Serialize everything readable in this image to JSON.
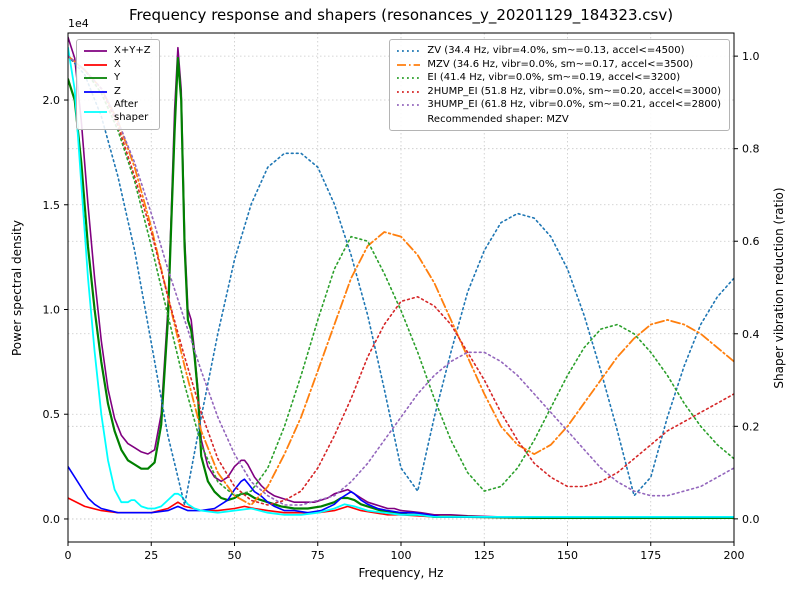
{
  "chart_data": {
    "type": "line",
    "title": "Frequency response and shapers (resonances_y_20201129_184323.csv)",
    "xlabel": "Frequency, Hz",
    "ylabel_left": "Power spectral density",
    "ylabel_right": "Shaper vibration reduction (ratio)",
    "offset_text": "1e4",
    "grid": true,
    "x_ticks": [
      "0",
      "25",
      "50",
      "75",
      "100",
      "125",
      "150",
      "175",
      "200"
    ],
    "y_left_ticks": [
      "0.0",
      "0.5",
      "1.0",
      "1.5",
      "2.0"
    ],
    "y_right_ticks": [
      "0.0",
      "0.2",
      "0.4",
      "0.6",
      "0.8",
      "1.0"
    ],
    "x_range": [
      0,
      200
    ],
    "y_left_range": [
      -0.11,
      2.32
    ],
    "y_right_range": [
      -0.05,
      1.05
    ],
    "y_left_unit": "1e4",
    "legend_left": {
      "items": [
        {
          "label": "X+Y+Z",
          "color": "#800080",
          "style": "solid"
        },
        {
          "label": "X",
          "color": "#ff0000",
          "style": "solid"
        },
        {
          "label": "Y",
          "color": "#008000",
          "style": "solid"
        },
        {
          "label": "Z",
          "color": "#0000ff",
          "style": "solid"
        },
        {
          "label": "After\nshaper",
          "color": "#00ffff",
          "style": "solid"
        }
      ]
    },
    "legend_right": {
      "items": [
        {
          "label": "ZV (34.4 Hz, vibr=4.0%, sm~=0.13, accel<=4500)",
          "color": "#1f77b4",
          "style": "dotted"
        },
        {
          "label": "MZV (34.6 Hz, vibr=0.0%, sm~=0.17, accel<=3500)",
          "color": "#ff7f0e",
          "style": "dashdot"
        },
        {
          "label": "EI (41.4 Hz, vibr=0.0%, sm~=0.19, accel<=3200)",
          "color": "#2ca02c",
          "style": "dotted"
        },
        {
          "label": "2HUMP_EI (51.8 Hz, vibr=0.0%, sm~=0.20, accel<=3000)",
          "color": "#d62728",
          "style": "dotted"
        },
        {
          "label": "3HUMP_EI (61.8 Hz, vibr=0.0%, sm~=0.21, accel<=2800)",
          "color": "#9467bd",
          "style": "dotted"
        }
      ],
      "note": "Recommended shaper: MZV"
    },
    "series": [
      {
        "name": "X+Y+Z",
        "axis": "left",
        "color": "#800080",
        "style": "solid",
        "width": 1.6,
        "x": [
          0,
          2,
          4,
          6,
          8,
          10,
          12,
          14,
          16,
          18,
          20,
          22,
          24,
          26,
          28,
          30,
          31,
          32,
          33,
          34,
          35,
          36,
          37,
          38,
          39,
          40,
          42,
          44,
          46,
          48,
          50,
          52,
          53,
          54,
          56,
          58,
          60,
          62,
          64,
          66,
          68,
          70,
          72,
          74,
          76,
          78,
          80,
          82,
          84,
          86,
          88,
          90,
          92,
          94,
          96,
          98,
          100,
          103,
          106,
          110,
          115,
          120,
          130,
          140,
          150,
          160,
          170,
          180,
          190,
          200
        ],
        "y": [
          2.3,
          2.2,
          1.9,
          1.5,
          1.15,
          0.85,
          0.62,
          0.48,
          0.4,
          0.36,
          0.34,
          0.32,
          0.31,
          0.33,
          0.5,
          1.0,
          1.45,
          1.95,
          2.25,
          2.05,
          1.35,
          1.0,
          0.95,
          0.8,
          0.62,
          0.38,
          0.25,
          0.2,
          0.18,
          0.2,
          0.25,
          0.28,
          0.28,
          0.26,
          0.2,
          0.16,
          0.13,
          0.11,
          0.1,
          0.09,
          0.08,
          0.08,
          0.08,
          0.08,
          0.09,
          0.1,
          0.12,
          0.13,
          0.14,
          0.12,
          0.1,
          0.08,
          0.07,
          0.06,
          0.05,
          0.05,
          0.04,
          0.035,
          0.03,
          0.02,
          0.02,
          0.015,
          0.01,
          0.01,
          0.01,
          0.01,
          0.01,
          0.01,
          0.01,
          0.01
        ]
      },
      {
        "name": "X",
        "axis": "left",
        "color": "#ff0000",
        "style": "solid",
        "width": 1.6,
        "x": [
          0,
          5,
          10,
          15,
          20,
          25,
          30,
          33,
          35,
          38,
          40,
          45,
          50,
          53,
          56,
          60,
          65,
          70,
          75,
          80,
          84,
          88,
          92,
          96,
          100,
          105,
          110,
          120,
          140,
          160,
          180,
          200
        ],
        "y": [
          0.1,
          0.06,
          0.04,
          0.03,
          0.03,
          0.03,
          0.05,
          0.08,
          0.06,
          0.05,
          0.04,
          0.04,
          0.05,
          0.06,
          0.05,
          0.04,
          0.03,
          0.03,
          0.03,
          0.04,
          0.06,
          0.04,
          0.03,
          0.02,
          0.02,
          0.015,
          0.01,
          0.01,
          0.01,
          0.01,
          0.01,
          0.01
        ]
      },
      {
        "name": "Y",
        "axis": "left",
        "color": "#008000",
        "style": "solid",
        "width": 2.2,
        "x": [
          0,
          2,
          4,
          6,
          8,
          10,
          12,
          14,
          16,
          18,
          20,
          22,
          24,
          26,
          28,
          30,
          31,
          32,
          33,
          34,
          35,
          36,
          37,
          38,
          39,
          40,
          42,
          44,
          46,
          48,
          50,
          52,
          54,
          56,
          58,
          60,
          64,
          68,
          72,
          76,
          80,
          82,
          84,
          86,
          88,
          90,
          94,
          98,
          102,
          106,
          110,
          120,
          140,
          160,
          180,
          200
        ],
        "y": [
          2.1,
          2.0,
          1.7,
          1.3,
          1.0,
          0.75,
          0.55,
          0.42,
          0.33,
          0.28,
          0.26,
          0.24,
          0.24,
          0.27,
          0.45,
          0.95,
          1.4,
          1.85,
          2.2,
          2.0,
          1.3,
          0.95,
          0.9,
          0.78,
          0.6,
          0.3,
          0.18,
          0.13,
          0.1,
          0.09,
          0.1,
          0.12,
          0.12,
          0.1,
          0.09,
          0.08,
          0.06,
          0.05,
          0.05,
          0.06,
          0.08,
          0.1,
          0.1,
          0.09,
          0.07,
          0.06,
          0.04,
          0.03,
          0.02,
          0.02,
          0.01,
          0.01,
          0.005,
          0.005,
          0.005,
          0.005
        ]
      },
      {
        "name": "Z",
        "axis": "left",
        "color": "#0000ff",
        "style": "solid",
        "width": 1.6,
        "x": [
          0,
          2,
          4,
          6,
          8,
          10,
          15,
          20,
          25,
          30,
          33,
          36,
          40,
          44,
          48,
          50,
          52,
          53,
          54,
          56,
          58,
          60,
          62,
          65,
          68,
          72,
          76,
          80,
          82,
          84,
          85,
          86,
          88,
          90,
          93,
          96,
          100,
          104,
          108,
          112,
          120,
          140,
          160,
          180,
          200
        ],
        "y": [
          0.25,
          0.2,
          0.15,
          0.1,
          0.07,
          0.05,
          0.03,
          0.03,
          0.03,
          0.04,
          0.06,
          0.04,
          0.04,
          0.05,
          0.09,
          0.14,
          0.18,
          0.19,
          0.17,
          0.13,
          0.11,
          0.08,
          0.06,
          0.04,
          0.04,
          0.03,
          0.04,
          0.07,
          0.1,
          0.12,
          0.13,
          0.12,
          0.09,
          0.07,
          0.05,
          0.04,
          0.03,
          0.03,
          0.02,
          0.01,
          0.01,
          0.01,
          0.01,
          0.01,
          0.01
        ]
      },
      {
        "name": "After shaper",
        "axis": "left",
        "color": "#00ffff",
        "style": "solid",
        "width": 1.8,
        "x": [
          0,
          2,
          4,
          6,
          8,
          10,
          12,
          14,
          16,
          18,
          19,
          20,
          22,
          24,
          26,
          28,
          30,
          32,
          33,
          34,
          36,
          38,
          40,
          45,
          50,
          55,
          60,
          65,
          70,
          75,
          80,
          83,
          86,
          90,
          95,
          100,
          105,
          110,
          130,
          150,
          175,
          200
        ],
        "y": [
          2.25,
          2.05,
          1.6,
          1.15,
          0.8,
          0.5,
          0.28,
          0.14,
          0.08,
          0.08,
          0.09,
          0.09,
          0.06,
          0.05,
          0.05,
          0.06,
          0.09,
          0.12,
          0.12,
          0.11,
          0.07,
          0.05,
          0.04,
          0.03,
          0.04,
          0.05,
          0.03,
          0.02,
          0.02,
          0.03,
          0.05,
          0.07,
          0.06,
          0.04,
          0.03,
          0.02,
          0.02,
          0.01,
          0.01,
          0.01,
          0.01,
          0.01
        ]
      },
      {
        "name": "ZV",
        "axis": "right",
        "color": "#1f77b4",
        "style": "dotted",
        "width": 1.6,
        "x": [
          0,
          5,
          10,
          15,
          20,
          25,
          30,
          35,
          40,
          45,
          50,
          55,
          60,
          65,
          70,
          75,
          80,
          85,
          90,
          95,
          100,
          105,
          110,
          115,
          120,
          125,
          130,
          135,
          140,
          145,
          150,
          155,
          160,
          165,
          170,
          175,
          180,
          185,
          190,
          195,
          200
        ],
        "y": [
          1.0,
          0.96,
          0.87,
          0.74,
          0.58,
          0.38,
          0.18,
          0.03,
          0.22,
          0.4,
          0.56,
          0.68,
          0.76,
          0.79,
          0.79,
          0.76,
          0.68,
          0.57,
          0.44,
          0.28,
          0.11,
          0.06,
          0.22,
          0.36,
          0.49,
          0.58,
          0.64,
          0.66,
          0.65,
          0.61,
          0.54,
          0.44,
          0.32,
          0.19,
          0.05,
          0.09,
          0.22,
          0.33,
          0.42,
          0.48,
          0.52
        ]
      },
      {
        "name": "MZV",
        "axis": "right",
        "color": "#ff7f0e",
        "style": "dashdot",
        "width": 1.8,
        "x": [
          0,
          5,
          10,
          15,
          20,
          25,
          30,
          35,
          40,
          45,
          50,
          55,
          60,
          65,
          70,
          75,
          80,
          85,
          90,
          95,
          100,
          105,
          110,
          115,
          120,
          125,
          130,
          135,
          140,
          145,
          150,
          155,
          160,
          165,
          170,
          175,
          180,
          185,
          190,
          195,
          200
        ],
        "y": [
          1.0,
          0.97,
          0.93,
          0.86,
          0.76,
          0.63,
          0.48,
          0.33,
          0.19,
          0.1,
          0.05,
          0.03,
          0.07,
          0.14,
          0.22,
          0.32,
          0.42,
          0.52,
          0.59,
          0.62,
          0.61,
          0.57,
          0.51,
          0.43,
          0.35,
          0.27,
          0.2,
          0.16,
          0.14,
          0.16,
          0.2,
          0.25,
          0.3,
          0.35,
          0.39,
          0.42,
          0.43,
          0.42,
          0.4,
          0.37,
          0.34
        ]
      },
      {
        "name": "EI",
        "axis": "right",
        "color": "#2ca02c",
        "style": "dotted",
        "width": 1.6,
        "x": [
          0,
          5,
          10,
          15,
          20,
          25,
          30,
          35,
          40,
          45,
          50,
          55,
          60,
          65,
          70,
          75,
          80,
          85,
          90,
          95,
          100,
          105,
          110,
          115,
          120,
          125,
          130,
          135,
          140,
          145,
          150,
          155,
          160,
          165,
          170,
          175,
          180,
          185,
          190,
          195,
          200
        ],
        "y": [
          1.0,
          0.97,
          0.92,
          0.84,
          0.73,
          0.59,
          0.44,
          0.29,
          0.16,
          0.08,
          0.05,
          0.06,
          0.11,
          0.2,
          0.31,
          0.43,
          0.54,
          0.61,
          0.6,
          0.53,
          0.45,
          0.36,
          0.26,
          0.17,
          0.1,
          0.06,
          0.07,
          0.11,
          0.17,
          0.24,
          0.31,
          0.37,
          0.41,
          0.42,
          0.4,
          0.36,
          0.31,
          0.25,
          0.2,
          0.16,
          0.13
        ]
      },
      {
        "name": "2HUMP_EI",
        "axis": "right",
        "color": "#d62728",
        "style": "dotted",
        "width": 1.6,
        "x": [
          0,
          5,
          10,
          15,
          20,
          25,
          30,
          35,
          40,
          45,
          50,
          55,
          60,
          65,
          70,
          75,
          80,
          85,
          90,
          95,
          100,
          105,
          110,
          115,
          120,
          125,
          130,
          135,
          140,
          145,
          150,
          155,
          160,
          165,
          170,
          175,
          180,
          185,
          190,
          195,
          200
        ],
        "y": [
          1.0,
          0.97,
          0.93,
          0.85,
          0.74,
          0.62,
          0.48,
          0.35,
          0.23,
          0.13,
          0.07,
          0.04,
          0.03,
          0.04,
          0.06,
          0.11,
          0.18,
          0.26,
          0.35,
          0.42,
          0.47,
          0.48,
          0.46,
          0.42,
          0.36,
          0.3,
          0.23,
          0.17,
          0.12,
          0.09,
          0.07,
          0.07,
          0.08,
          0.1,
          0.13,
          0.16,
          0.19,
          0.21,
          0.23,
          0.25,
          0.27
        ]
      },
      {
        "name": "3HUMP_EI",
        "axis": "right",
        "color": "#9467bd",
        "style": "dotted",
        "width": 1.6,
        "x": [
          0,
          5,
          10,
          15,
          20,
          25,
          30,
          35,
          40,
          45,
          50,
          55,
          60,
          65,
          70,
          75,
          80,
          85,
          90,
          95,
          100,
          105,
          110,
          115,
          120,
          125,
          130,
          135,
          140,
          145,
          150,
          155,
          160,
          165,
          170,
          175,
          180,
          185,
          190,
          195,
          200
        ],
        "y": [
          1.0,
          0.97,
          0.93,
          0.86,
          0.77,
          0.66,
          0.54,
          0.43,
          0.32,
          0.22,
          0.14,
          0.08,
          0.05,
          0.03,
          0.03,
          0.04,
          0.05,
          0.08,
          0.12,
          0.17,
          0.22,
          0.27,
          0.31,
          0.34,
          0.36,
          0.36,
          0.34,
          0.31,
          0.27,
          0.23,
          0.19,
          0.15,
          0.11,
          0.08,
          0.06,
          0.05,
          0.05,
          0.06,
          0.07,
          0.09,
          0.11
        ]
      }
    ]
  }
}
